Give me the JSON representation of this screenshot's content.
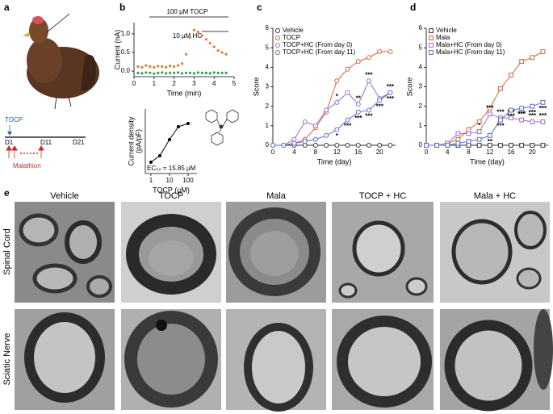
{
  "panel_labels": [
    "a",
    "b",
    "c",
    "d",
    "e"
  ],
  "timeline": {
    "treatment": "TOCP",
    "days": [
      "D1",
      "D11",
      "D21"
    ],
    "exposure": "Malathion"
  },
  "chart_data": [
    {
      "type": "scatter",
      "x": [
        0.2,
        0.4,
        0.6,
        0.8,
        1.0,
        1.2,
        1.4,
        1.6,
        1.8,
        2.0,
        2.2,
        2.4,
        2.6,
        2.8,
        3.0,
        3.2,
        3.4,
        3.6,
        3.8,
        4.0,
        4.2,
        4.4,
        4.6
      ],
      "series": [
        {
          "color": "#e07b39",
          "values": [
            0.12,
            0.1,
            0.15,
            0.12,
            0.1,
            0.13,
            0.12,
            0.1,
            0.14,
            0.12,
            0.15,
            0.2,
            0.45,
            0.9,
            1.1,
            1.05,
            0.95,
            0.85,
            0.75,
            0.65,
            0.55,
            0.5,
            0.45
          ]
        },
        {
          "color": "#3d9a5a",
          "values": [
            -0.05,
            -0.06,
            -0.04,
            -0.05,
            -0.07,
            -0.05,
            -0.04,
            -0.06,
            -0.05,
            -0.05,
            -0.04,
            -0.06,
            -0.05,
            -0.05,
            -0.06,
            -0.04,
            -0.05,
            -0.05,
            -0.06,
            -0.04,
            -0.05,
            -0.05,
            -0.05
          ]
        }
      ],
      "xlim": [
        0,
        5
      ],
      "xticks": [
        0,
        1,
        2,
        3,
        4,
        5
      ],
      "ylim": [
        -0.15,
        1.3
      ],
      "yticks": [
        {
          "value": 0,
          "label": "0.0"
        },
        {
          "value": 0.5,
          "label": "0.5"
        },
        {
          "value": 1,
          "label": "1.0"
        }
      ],
      "x_label": "Time (min)",
      "y_label": [
        "Current (nA)"
      ],
      "annotations": [
        "100 µM TOCP",
        "10 µM HC"
      ]
    },
    {
      "type": "line",
      "xscale": "log",
      "x": [
        1,
        3,
        10,
        30,
        100
      ],
      "series": [
        {
          "color": "#000000",
          "marker": "dot",
          "values": [
            14,
            22,
            42,
            58,
            62
          ]
        }
      ],
      "xlim": [
        0.5,
        300
      ],
      "xticks": [
        1,
        10,
        100
      ],
      "ylim": [
        0,
        80
      ],
      "x_label": "TOCP (µM)",
      "y_label": [
        "Current density",
        "(pA/pF)"
      ],
      "annotations": [
        "EC₅₀ = 15.85 µM"
      ]
    },
    {
      "type": "line",
      "marker": "circle",
      "legend": "upper left",
      "x": [
        0,
        2,
        4,
        6,
        8,
        10,
        12,
        14,
        16,
        18,
        20,
        22
      ],
      "series": [
        {
          "name": "Vehicle",
          "color": "#333333",
          "values": [
            0,
            0,
            0,
            0,
            0,
            0,
            0,
            0,
            0,
            0,
            0,
            0
          ]
        },
        {
          "name": "TOCP",
          "color": "#e0603a",
          "values": [
            0,
            0,
            0.1,
            0.3,
            0.9,
            1.7,
            3.3,
            3.9,
            4.3,
            4.5,
            4.8,
            4.8
          ]
        },
        {
          "name": "TOCP+HC (From day 0)",
          "color": "#9b6fc5",
          "values": [
            0,
            0,
            0.3,
            1.2,
            1.0,
            1.8,
            2.2,
            2.7,
            2.1,
            3.3,
            2.4,
            2.7
          ],
          "significance": [
            null,
            null,
            null,
            null,
            null,
            null,
            "*",
            null,
            "**",
            "***",
            null,
            "***"
          ]
        },
        {
          "name": "TOCP+HC (From day 11)",
          "color": "#5a6fd6",
          "values": [
            0,
            0,
            0.1,
            0.2,
            0.3,
            0.5,
            0.8,
            1.3,
            1.7,
            1.8,
            2.3,
            2.7
          ],
          "significance": [
            null,
            null,
            null,
            null,
            null,
            null,
            "*",
            "***",
            "***",
            "***",
            "***",
            "***"
          ]
        }
      ],
      "xlim": [
        0,
        23
      ],
      "xticks": [
        0,
        4,
        8,
        12,
        16,
        20
      ],
      "ylim": [
        0,
        6
      ],
      "yticks": [
        0,
        1,
        2,
        3,
        4,
        5,
        6
      ],
      "x_label": "Time (day)",
      "y_label": [
        "Score"
      ]
    },
    {
      "type": "line",
      "marker": "square",
      "legend": "upper left",
      "x": [
        0,
        2,
        4,
        6,
        8,
        10,
        12,
        14,
        16,
        18,
        20,
        22
      ],
      "series": [
        {
          "name": "Vehicle",
          "color": "#333333",
          "values": [
            0,
            0,
            0,
            0,
            0,
            0,
            0,
            0,
            0,
            0,
            0,
            0
          ]
        },
        {
          "name": "Mala",
          "color": "#e0603a",
          "values": [
            0,
            0,
            0.1,
            0.3,
            0.8,
            1.2,
            1.9,
            2.9,
            3.6,
            4.3,
            4.5,
            4.8
          ]
        },
        {
          "name": "Mala+HC (From day 0)",
          "color": "#9b6fc5",
          "values": [
            0,
            0,
            0.1,
            0.6,
            0.6,
            0.7,
            1.6,
            1.4,
            1.4,
            1.3,
            1.2,
            1.2
          ],
          "significance": [
            null,
            null,
            null,
            null,
            null,
            "*",
            "***",
            "***",
            "***",
            "***",
            "***",
            "***"
          ]
        },
        {
          "name": "Mala+HC (From day 11)",
          "color": "#5a6fd6",
          "values": [
            0,
            0,
            0,
            0.1,
            0.2,
            0.3,
            0.5,
            1.3,
            1.8,
            1.9,
            2.0,
            2.2
          ],
          "significance": [
            null,
            null,
            null,
            null,
            null,
            null,
            "**",
            "***",
            "***",
            "***",
            "***",
            "***"
          ]
        }
      ],
      "xlim": [
        0,
        23
      ],
      "xticks": [
        0,
        4,
        8,
        12,
        16,
        20
      ],
      "ylim": [
        0,
        6
      ],
      "yticks": [
        0,
        1,
        2,
        3,
        4,
        5,
        6
      ],
      "x_label": "Time (day)",
      "y_label": [
        "Score"
      ]
    }
  ],
  "micrographs": {
    "columns": [
      "Vehicle",
      "TOCP",
      "Mala",
      "TOCP + HC",
      "Mala + HC"
    ],
    "rows": [
      "Spinal Cord",
      "Sciatic Nerve"
    ]
  }
}
